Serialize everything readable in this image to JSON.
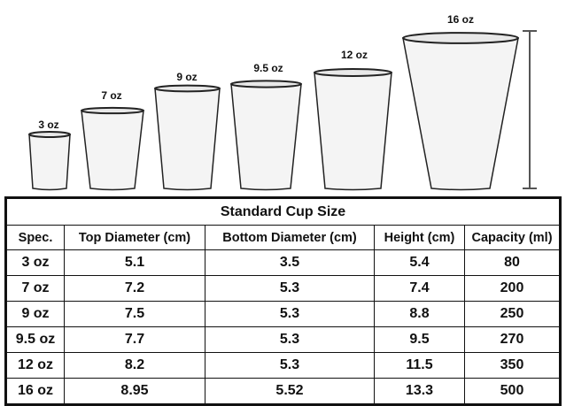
{
  "cups": [
    {
      "label": "3 oz"
    },
    {
      "label": "7 oz"
    },
    {
      "label": "9 oz"
    },
    {
      "label": "9.5 oz"
    },
    {
      "label": "12 oz"
    },
    {
      "label": "16 oz"
    }
  ],
  "table": {
    "title": "Standard Cup Size",
    "headers": [
      "Spec.",
      "Top Diameter (cm)",
      "Bottom Diameter (cm)",
      "Height (cm)",
      "Capacity (ml)"
    ],
    "rows": [
      [
        "3 oz",
        "5.1",
        "3.5",
        "5.4",
        "80"
      ],
      [
        "7 oz",
        "7.2",
        "5.3",
        "7.4",
        "200"
      ],
      [
        "9 oz",
        "7.5",
        "5.3",
        "8.8",
        "250"
      ],
      [
        "9.5 oz",
        "7.7",
        "5.3",
        "9.5",
        "270"
      ],
      [
        "12 oz",
        "8.2",
        "5.3",
        "11.5",
        "350"
      ],
      [
        "16 oz",
        "8.95",
        "5.52",
        "13.3",
        "500"
      ]
    ]
  }
}
